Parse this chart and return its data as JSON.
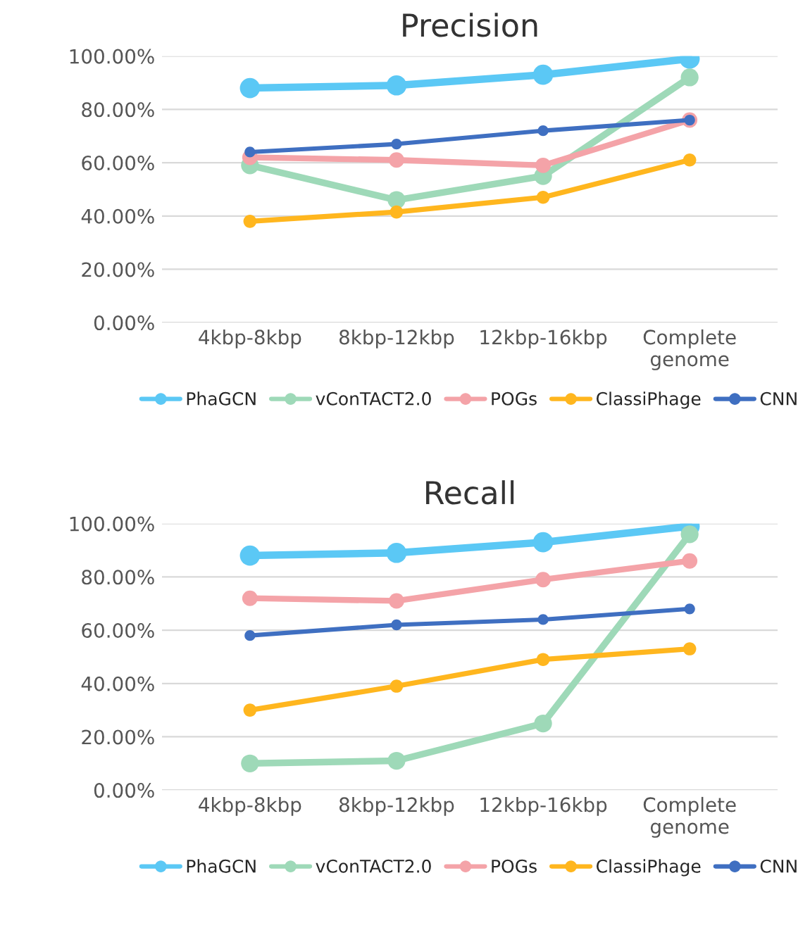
{
  "chart_data": [
    {
      "type": "line",
      "title": "Precision",
      "categories": [
        "4kbp-8kbp",
        "8kbp-12kbp",
        "12kbp-16kbp",
        "Complete\ngenome"
      ],
      "ylim": [
        0,
        100
      ],
      "yticks": [
        {
          "value": 0,
          "label": "0.00%"
        },
        {
          "value": 20,
          "label": "20.00%"
        },
        {
          "value": 40,
          "label": "40.00%"
        },
        {
          "value": 60,
          "label": "60.00%"
        },
        {
          "value": 80,
          "label": "80.00%"
        },
        {
          "value": 100,
          "label": "100.00%"
        }
      ],
      "grid": "y",
      "legend": "bottom",
      "marker": "circle",
      "line_style": "solid",
      "series": [
        {
          "name": "PhaGCN",
          "color": "#5bc8f5",
          "values": [
            88,
            89,
            93,
            99
          ]
        },
        {
          "name": "vConTACT2.0",
          "color": "#9ed9b8",
          "values": [
            59,
            46,
            55,
            92
          ]
        },
        {
          "name": "POGs",
          "color": "#f4a3a8",
          "values": [
            62,
            61,
            59,
            76
          ]
        },
        {
          "name": "ClassiPhage",
          "color": "#ffb61e",
          "values": [
            38,
            41.5,
            47,
            61
          ]
        },
        {
          "name": "CNN",
          "color": "#3f6fc1",
          "values": [
            64,
            67,
            72,
            76
          ]
        }
      ]
    },
    {
      "type": "line",
      "title": "Recall",
      "categories": [
        "4kbp-8kbp",
        "8kbp-12kbp",
        "12kbp-16kbp",
        "Complete\ngenome"
      ],
      "ylim": [
        0,
        100
      ],
      "yticks": [
        {
          "value": 0,
          "label": "0.00%"
        },
        {
          "value": 20,
          "label": "20.00%"
        },
        {
          "value": 40,
          "label": "40.00%"
        },
        {
          "value": 60,
          "label": "60.00%"
        },
        {
          "value": 80,
          "label": "80.00%"
        },
        {
          "value": 100,
          "label": "100.00%"
        }
      ],
      "grid": "y",
      "legend": "bottom",
      "marker": "circle",
      "line_style": "solid",
      "series": [
        {
          "name": "PhaGCN",
          "color": "#5bc8f5",
          "values": [
            88,
            89,
            93,
            99
          ]
        },
        {
          "name": "vConTACT2.0",
          "color": "#9ed9b8",
          "values": [
            10,
            11,
            25,
            96
          ]
        },
        {
          "name": "POGs",
          "color": "#f4a3a8",
          "values": [
            72,
            71,
            79,
            86
          ]
        },
        {
          "name": "ClassiPhage",
          "color": "#ffb61e",
          "values": [
            30,
            39,
            49,
            53
          ]
        },
        {
          "name": "CNN",
          "color": "#3f6fc1",
          "values": [
            58,
            62,
            64,
            68
          ]
        }
      ]
    }
  ]
}
